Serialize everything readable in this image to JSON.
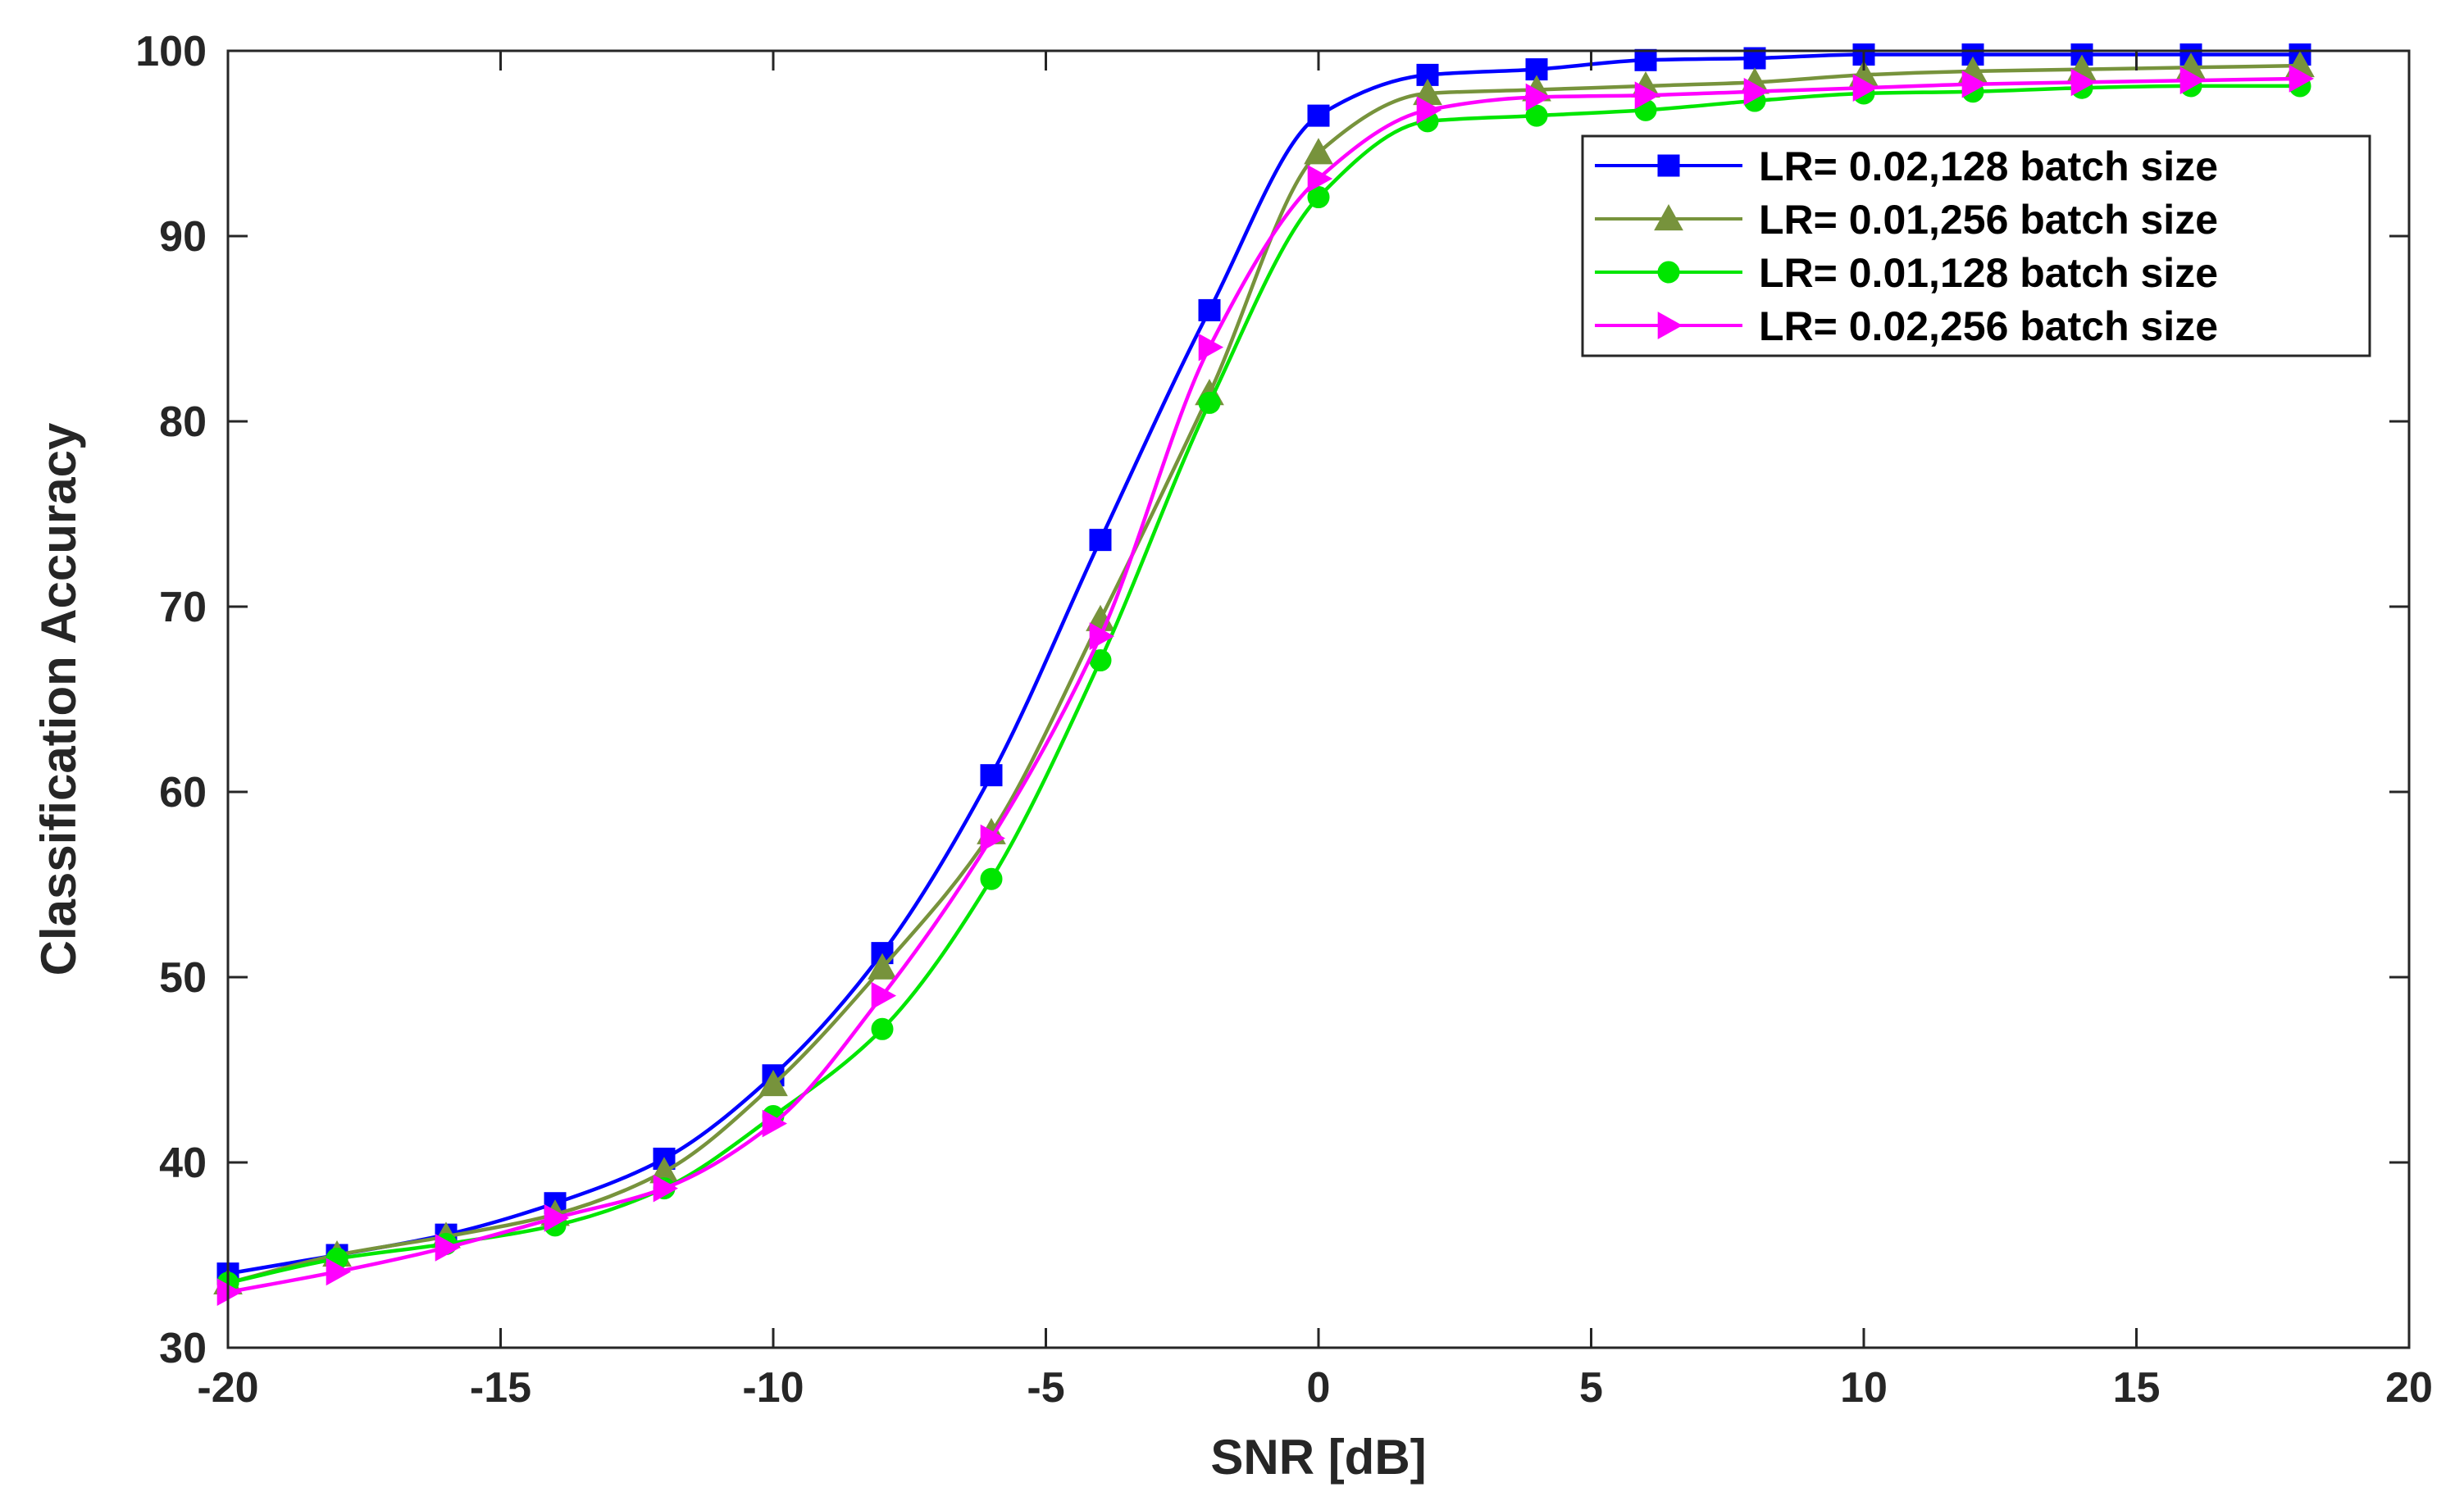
{
  "chart_data": {
    "type": "line",
    "title": "",
    "xlabel": "SNR [dB]",
    "ylabel": "Classification Accuracy",
    "xlim": [
      -20,
      20
    ],
    "ylim": [
      30,
      100
    ],
    "xticks": [
      -20,
      -15,
      -10,
      -5,
      0,
      5,
      10,
      15,
      20
    ],
    "yticks": [
      30,
      40,
      50,
      60,
      70,
      80,
      90,
      100
    ],
    "grid": false,
    "legend_position": "top-right",
    "x": [
      -20,
      -18,
      -16,
      -14,
      -12,
      -10,
      -8,
      -6,
      -4,
      -2,
      0,
      2,
      4,
      6,
      8,
      10,
      12,
      14,
      16,
      18
    ],
    "series": [
      {
        "name": "LR= 0.02,128 batch size",
        "color": "#0000ff",
        "marker": "square",
        "values": [
          34.0,
          35.0,
          36.1,
          37.8,
          40.2,
          44.7,
          51.3,
          60.9,
          73.6,
          86.0,
          96.5,
          98.7,
          99.0,
          99.5,
          99.6,
          99.8,
          99.8,
          99.8,
          99.8,
          99.8
        ]
      },
      {
        "name": "LR= 0.01,256 batch size",
        "color": "#77933c",
        "marker": "triangle-up",
        "values": [
          33.5,
          35.0,
          36.0,
          37.2,
          39.5,
          44.2,
          50.5,
          57.8,
          69.3,
          81.5,
          94.5,
          97.7,
          97.9,
          98.1,
          98.3,
          98.7,
          98.9,
          99.0,
          99.1,
          99.2
        ]
      },
      {
        "name": "LR= 0.01,128 batch size",
        "color": "#00e600",
        "marker": "circle",
        "values": [
          33.5,
          34.8,
          35.6,
          36.6,
          38.6,
          42.5,
          47.2,
          55.3,
          67.1,
          81.0,
          92.1,
          96.2,
          96.5,
          96.8,
          97.3,
          97.7,
          97.8,
          98.0,
          98.1,
          98.1
        ]
      },
      {
        "name": "LR= 0.02,256 batch size",
        "color": "#ff00ff",
        "marker": "triangle-right",
        "values": [
          33.0,
          34.1,
          35.4,
          37.0,
          38.6,
          42.1,
          49.0,
          57.5,
          68.4,
          84.0,
          93.1,
          96.8,
          97.5,
          97.6,
          97.8,
          98.0,
          98.2,
          98.3,
          98.4,
          98.5
        ]
      }
    ]
  }
}
